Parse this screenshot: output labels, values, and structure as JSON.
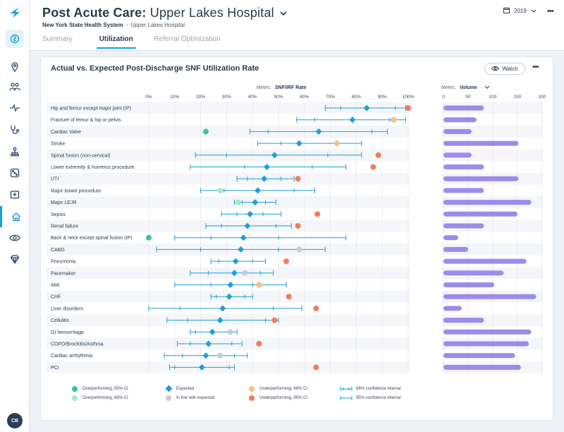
{
  "app": {
    "title_bold": "Post Acute Care:",
    "title_rest": "Upper Lakes Hospital",
    "breadcrumb": {
      "parent": "New York State Health System",
      "current": "Upper Lakes Hospital"
    },
    "year": "2019",
    "tabs": [
      "Summary",
      "Utilization",
      "Referral Optimization"
    ],
    "active_tab": "Utilization",
    "user_initials": "CB"
  },
  "sidebar": {
    "icons": [
      "app-switch-icon",
      "location-icon",
      "people-icon",
      "vitals-icon",
      "stethoscope-icon",
      "hierarchy-icon",
      "dice-icon",
      "hospital-icon",
      "home-icon",
      "eye-icon",
      "diamond-icon"
    ],
    "active": "home-icon"
  },
  "card": {
    "title": "Actual vs. Expected Post-Discharge SNF Utilization Rate",
    "watch_label": "Watch"
  },
  "colors": {
    "expected": "#1e9fd8",
    "over95": "#3cc3a0",
    "over68": "#a9e8c6",
    "inline": "#c8cdd2",
    "under68": "#f8c084",
    "under95": "#f47c5c",
    "bar": "#9b8cec"
  },
  "chart_data": [
    {
      "type": "scatter",
      "title": "Actual vs. Expected Post-Discharge SNF Utilization Rate",
      "metric_label": "Metric:",
      "metric_value": "SNF/IRF Rate",
      "xlim": [
        0,
        100
      ],
      "x_ticks": [
        0,
        10,
        20,
        30,
        40,
        50,
        60,
        70,
        80,
        90,
        100
      ],
      "x_tick_labels": [
        "0%",
        "10%",
        "20%",
        "30%",
        "40%",
        "50%",
        "60%",
        "70%",
        "80%",
        "90%",
        "100%"
      ],
      "categories": [
        "Hip and femur except major joint (IP)",
        "Fracture of femur & hip or pelvis",
        "Cardiac Valve",
        "Stroke",
        "Spinal fusion (non-cervical)",
        "Lower extremity & humerus procedure",
        "UTI",
        "Major bowel procedure",
        "Major LEJR",
        "Sepsis",
        "Renal failure",
        "Back & neck except spinal fusion (IP)",
        "CABG",
        "Pneumonia",
        "Pacemaker",
        "AMI",
        "CHF",
        "Liver disorders",
        "Cellulitis",
        "GI hemorrhage",
        "COPD/Brochitis/Asthma",
        "Cardiac arrhythmia",
        "PCI"
      ],
      "expected": [
        84,
        78.5,
        65.5,
        58,
        48.5,
        45.5,
        44.5,
        42,
        41,
        39,
        38,
        36.5,
        35.5,
        33.5,
        33,
        31.5,
        31,
        28.5,
        27.5,
        24.5,
        23,
        22,
        20.5
      ],
      "ci68": [
        [
          74,
          95
        ],
        [
          64,
          93
        ],
        [
          46,
          86
        ],
        [
          51,
          73
        ],
        [
          30,
          69
        ],
        [
          37,
          63
        ],
        [
          38,
          51
        ],
        [
          29,
          56
        ],
        [
          36,
          45
        ],
        [
          34,
          44
        ],
        [
          28,
          49
        ],
        [
          24,
          50
        ],
        [
          20,
          50
        ],
        [
          27,
          40
        ],
        [
          23,
          43
        ],
        [
          24,
          40
        ],
        [
          26,
          37
        ],
        [
          12,
          48
        ],
        [
          15,
          45
        ],
        [
          18,
          32
        ],
        [
          16,
          32
        ],
        [
          13,
          33
        ],
        [
          10,
          31
        ]
      ],
      "ci95": [
        [
          68,
          99
        ],
        [
          57,
          99
        ],
        [
          39,
          92
        ],
        [
          42,
          82
        ],
        [
          18,
          82
        ],
        [
          16,
          76
        ],
        [
          34,
          56
        ],
        [
          20,
          64
        ],
        [
          33,
          49
        ],
        [
          28,
          51
        ],
        [
          22,
          55
        ],
        [
          10,
          76
        ],
        [
          3,
          68
        ],
        [
          24,
          45
        ],
        [
          16,
          48
        ],
        [
          10,
          53
        ],
        [
          24,
          40
        ],
        [
          0,
          59
        ],
        [
          7,
          50
        ],
        [
          16,
          34
        ],
        [
          11,
          36
        ],
        [
          6,
          38
        ],
        [
          8,
          33
        ]
      ],
      "actual": [
        100,
        94.5,
        22,
        72.5,
        88.5,
        86.5,
        57.5,
        27.5,
        34.5,
        65,
        57.5,
        0,
        58,
        53,
        37,
        42.5,
        54,
        64.5,
        48.5,
        31.5,
        42.5,
        27.5,
        64.5
      ],
      "status": [
        "under95",
        "under68",
        "over95",
        "under68",
        "under95",
        "under95",
        "under95",
        "over68",
        "over68",
        "under95",
        "under95",
        "over95",
        "inline",
        "under95",
        "inline",
        "under68",
        "under95",
        "under95",
        "under95",
        "inline",
        "under95",
        "inline",
        "under95"
      ],
      "legend": [
        {
          "key": "over95",
          "label": "Overperforming, 95% CI"
        },
        {
          "key": "over68",
          "label": "Overperforming, 68% CI"
        },
        {
          "key": "expected",
          "label": "Expected"
        },
        {
          "key": "inline",
          "label": "In line with expected"
        },
        {
          "key": "under68",
          "label": "Underperforming, 68% CI"
        },
        {
          "key": "under95",
          "label": "Underperforming, 95% CI"
        },
        {
          "key": "ci68",
          "label": "68% confidence interval"
        },
        {
          "key": "ci95",
          "label": "95% confidence interval"
        }
      ]
    },
    {
      "type": "bar",
      "orientation": "horizontal",
      "metric_label": "Metric:",
      "metric_value": "Volume",
      "xlim": [
        0,
        200
      ],
      "x_ticks": [
        0,
        50,
        100,
        150,
        200
      ],
      "categories": [
        "Hip and femur except major joint (IP)",
        "Fracture of femur & hip or pelvis",
        "Cardiac Valve",
        "Stroke",
        "Spinal fusion (non-cervical)",
        "Lower extremity & humerus procedure",
        "UTI",
        "Major bowel procedure",
        "Major LEJR",
        "Sepsis",
        "Renal failure",
        "Back & neck except spinal fusion (IP)",
        "CABG",
        "Pneumonia",
        "Pacemaker",
        "AMI",
        "CHF",
        "Liver disorders",
        "Cellulitis",
        "GI hemorrhage",
        "COPD/Brochitis/Asthma",
        "Cardiac arrhythmia",
        "PCI"
      ],
      "values": [
        82,
        67,
        57,
        152,
        57,
        82,
        152,
        82,
        178,
        150,
        82,
        30,
        50,
        168,
        122,
        103,
        188,
        37,
        82,
        178,
        173,
        145,
        157
      ]
    }
  ]
}
